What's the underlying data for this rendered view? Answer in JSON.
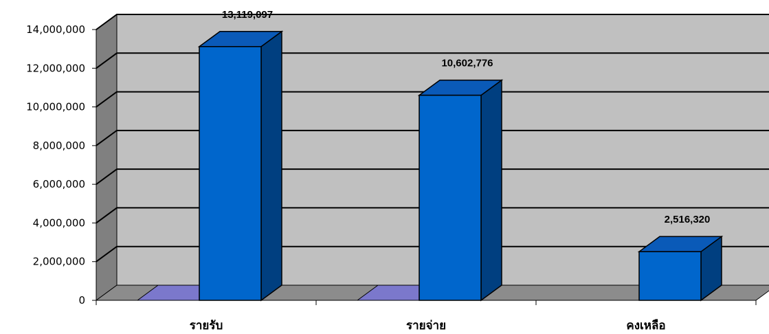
{
  "chart_data": {
    "type": "bar",
    "style": "3d-column",
    "categories": [
      "รายรับ",
      "รายจ่าย",
      "คงเหลือ"
    ],
    "values": [
      13119097,
      10602776,
      2516320
    ],
    "data_labels": [
      "13,119,097",
      "10,602,776",
      "2,516,320"
    ],
    "ylim": [
      0,
      14000000
    ],
    "yticks": [
      0,
      2000000,
      4000000,
      6000000,
      8000000,
      10000000,
      12000000,
      14000000
    ],
    "ytick_labels": [
      "0",
      "2,000,000",
      "4,000,000",
      "6,000,000",
      "8,000,000",
      "10,000,000",
      "12,000,000",
      "14,000,000"
    ],
    "grid": true,
    "legend": "none",
    "colors": {
      "bar_front": "#0066cc",
      "bar_side": "#003f80",
      "bar_top": "#0a5ab8",
      "back_wall": "#c0c0c0",
      "side_wall": "#808080",
      "floor": "#8c8c8c",
      "hidden_series": "#7b78cc"
    }
  }
}
